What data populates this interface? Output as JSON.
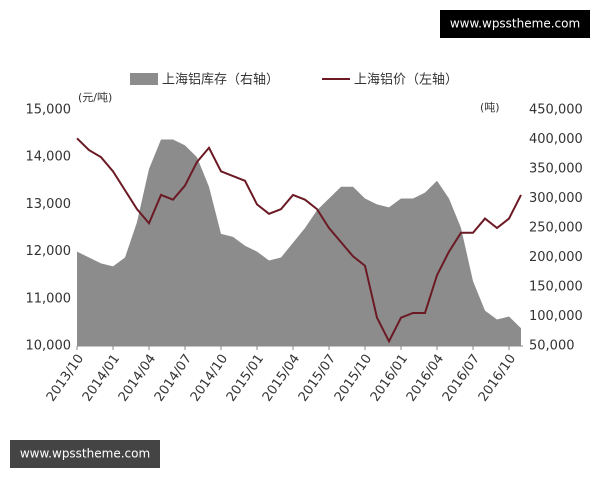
{
  "chart_data": {
    "type": "line",
    "ylabel": "(元/吨)",
    "y2label": "(吨)",
    "categories": [
      "2013/10",
      null,
      null,
      "2014/01",
      null,
      null,
      "2014/04",
      null,
      null,
      "2014/07",
      null,
      null,
      "2014/10",
      null,
      null,
      "2015/01",
      null,
      null,
      "2015/04",
      null,
      null,
      "2015/07",
      null,
      null,
      "2015/10",
      null,
      null,
      "2016/01",
      null,
      null,
      "2016/04",
      null,
      null,
      "2016/07",
      null,
      null,
      "2016/10",
      null
    ],
    "series": [
      {
        "name": "上海铝库存（右轴）",
        "type": "area",
        "axis": "y2",
        "color": "#8c8c8c",
        "values": [
          210000,
          200000,
          190000,
          185000,
          200000,
          260000,
          350000,
          400000,
          400000,
          390000,
          370000,
          320000,
          240000,
          235000,
          220000,
          210000,
          195000,
          200000,
          225000,
          250000,
          280000,
          300000,
          320000,
          320000,
          300000,
          290000,
          285000,
          300000,
          300000,
          310000,
          330000,
          300000,
          250000,
          160000,
          110000,
          95000,
          100000,
          80000
        ]
      },
      {
        "name": "上海铝价（左轴）",
        "type": "line",
        "axis": "y",
        "color": "#6b1a24",
        "values": [
          14400,
          14150,
          14000,
          13700,
          13300,
          12900,
          12600,
          13200,
          13100,
          13400,
          13900,
          14200,
          13700,
          13600,
          13500,
          13000,
          12800,
          12900,
          13200,
          13100,
          12900,
          12500,
          12200,
          11900,
          11700,
          10600,
          10100,
          10600,
          10700,
          10700,
          11500,
          12000,
          12400,
          12400,
          12700,
          12500,
          12700,
          13200
        ]
      }
    ],
    "ylim": [
      10000,
      15000
    ],
    "yticks": [
      {
        "value": 10000,
        "label": "10,000"
      },
      {
        "value": 11000,
        "label": "11,000"
      },
      {
        "value": 12000,
        "label": "12,000"
      },
      {
        "value": 13000,
        "label": "13,000"
      },
      {
        "value": 14000,
        "label": "14,000"
      },
      {
        "value": 15000,
        "label": "15,000"
      }
    ],
    "y2lim": [
      50000,
      450000
    ],
    "y2ticks": [
      {
        "value": 50000,
        "label": "50,000"
      },
      {
        "value": 100000,
        "label": "100,000"
      },
      {
        "value": 150000,
        "label": "150,000"
      },
      {
        "value": 200000,
        "label": "200,000"
      },
      {
        "value": 250000,
        "label": "250,000"
      },
      {
        "value": 300000,
        "label": "300,000"
      },
      {
        "value": 350000,
        "label": "350,000"
      },
      {
        "value": 400000,
        "label": "400,000"
      },
      {
        "value": 450000,
        "label": "450,000"
      }
    ],
    "legend": "top"
  },
  "watermarks": [
    "www.wpsstheme.com",
    "www.wpsstheme.com"
  ]
}
